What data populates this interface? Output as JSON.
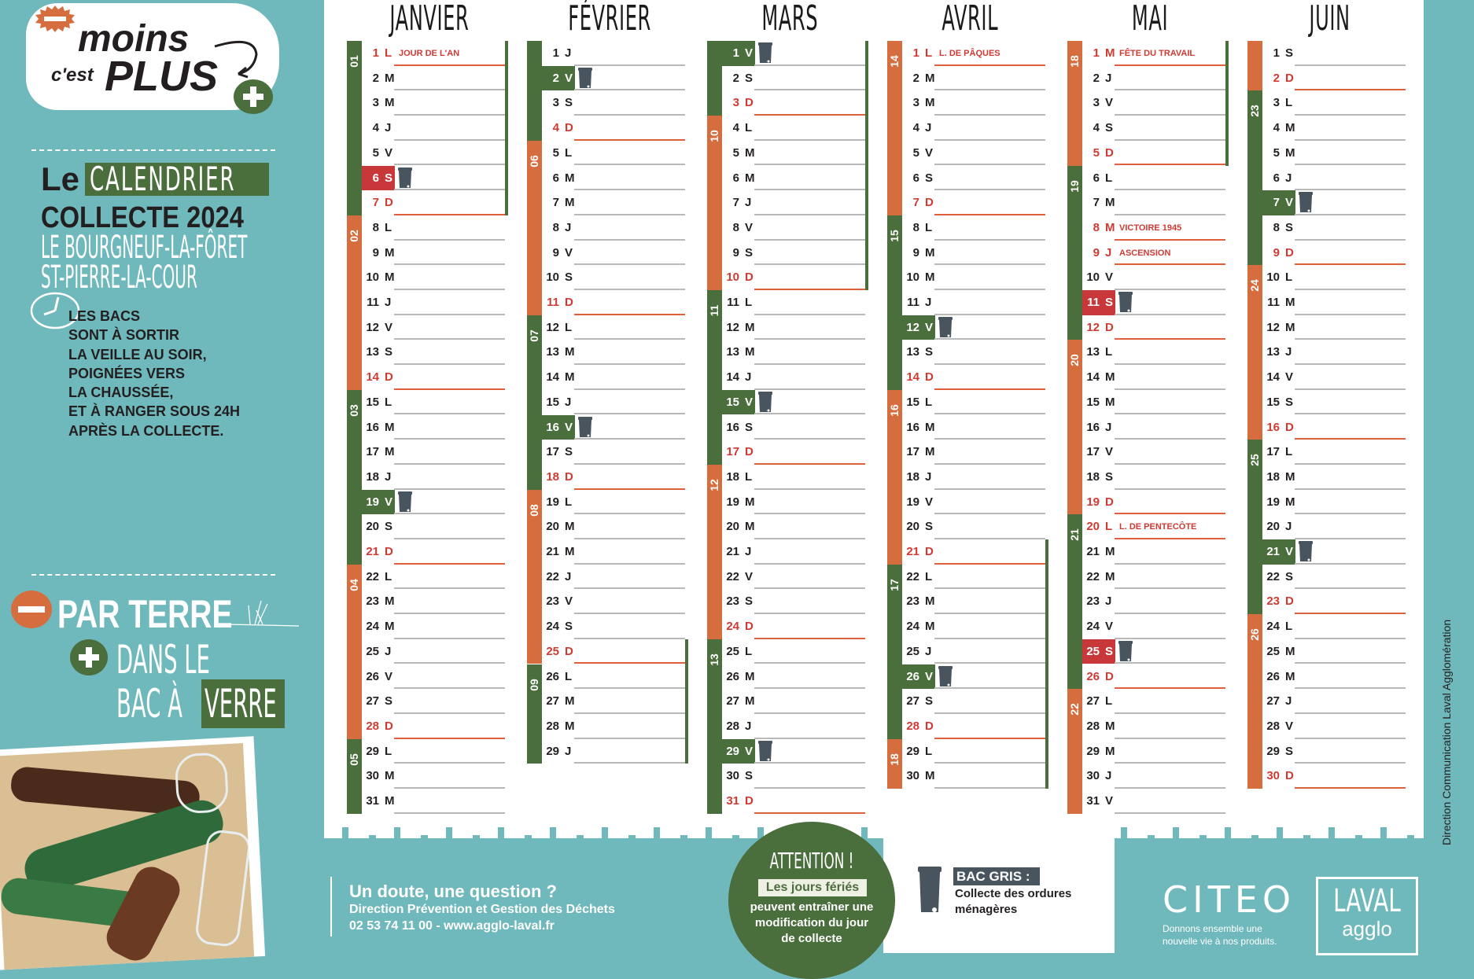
{
  "colors": {
    "teal": "#6fb8bc",
    "green": "#4a6e3c",
    "orange": "#d66d3f",
    "red": "#c8373a",
    "bin": "#48555e"
  },
  "logo": {
    "moins": "moins",
    "cest": "c'est",
    "plus": "PLUS"
  },
  "title": {
    "le": "Le",
    "calendrier": "CALENDRIER",
    "collecte": "COLLECTE 2024",
    "commune1": "LE BOURGNEUF-LA-FÔRET",
    "commune2": "ST-PIERRE-LA-COUR"
  },
  "instructions": [
    "LES BACS",
    "SONT À SORTIR",
    "LA VEILLE AU SOIR,",
    "POIGNÉES VERS",
    "LA CHAUSSÉE,",
    "ET À RANGER SOUS 24H",
    "APRÈS LA COLLECTE."
  ],
  "glass": {
    "line1": "PAR TERRE",
    "line2": "DANS LE",
    "line3a": "BAC À",
    "line3b": "VERRE"
  },
  "contact": {
    "question": "Un doute, une question ?",
    "service": "Direction Prévention et Gestion des Déchets",
    "phone_web": "02 53 74 11 00 - www.agglo-laval.fr"
  },
  "attention": {
    "title": "ATTENTION !",
    "highlight": "Les jours fériés",
    "lines": [
      "peuvent entraîner une",
      "modification du jour",
      "de collecte"
    ]
  },
  "legend": {
    "label": "BAC GRIS :",
    "desc1": "Collecte des ordures",
    "desc2": "ménagères",
    "icon": "trash-bin-icon"
  },
  "citeo": {
    "logo": "CITEO",
    "tag1": "Donnons ensemble une",
    "tag2": "nouvelle vie à nos produits."
  },
  "laval": {
    "logo1": "LAVAL",
    "logo2": "agglo"
  },
  "credit": "Direction Communication Laval Agglomération",
  "months": [
    {
      "name": "JANVIER",
      "weeks": [
        {
          "n": "01",
          "days": 7,
          "color": "green"
        },
        {
          "n": "02",
          "days": 7,
          "color": "orange"
        },
        {
          "n": "03",
          "days": 7,
          "color": "green"
        },
        {
          "n": "04",
          "days": 7,
          "color": "orange"
        },
        {
          "n": "05",
          "days": 3,
          "color": "green"
        }
      ],
      "days": [
        [
          "1",
          "L"
        ],
        [
          "2",
          "M"
        ],
        [
          "3",
          "M"
        ],
        [
          "4",
          "J"
        ],
        [
          "5",
          "V"
        ],
        [
          "6",
          "S"
        ],
        [
          "7",
          "D"
        ],
        [
          "8",
          "L"
        ],
        [
          "9",
          "M"
        ],
        [
          "10",
          "M"
        ],
        [
          "11",
          "J"
        ],
        [
          "12",
          "V"
        ],
        [
          "13",
          "S"
        ],
        [
          "14",
          "D"
        ],
        [
          "15",
          "L"
        ],
        [
          "16",
          "M"
        ],
        [
          "17",
          "M"
        ],
        [
          "18",
          "J"
        ],
        [
          "19",
          "V"
        ],
        [
          "20",
          "S"
        ],
        [
          "21",
          "D"
        ],
        [
          "22",
          "L"
        ],
        [
          "23",
          "M"
        ],
        [
          "24",
          "M"
        ],
        [
          "25",
          "J"
        ],
        [
          "26",
          "V"
        ],
        [
          "27",
          "S"
        ],
        [
          "28",
          "D"
        ],
        [
          "29",
          "L"
        ],
        [
          "30",
          "M"
        ],
        [
          "31",
          "M"
        ]
      ],
      "holidays": {
        "1": "JOUR DE L'AN"
      },
      "collection": [
        {
          "day": "6",
          "shifted": true
        },
        {
          "day": "19",
          "shifted": false
        }
      ],
      "vacation": [
        1,
        7
      ]
    },
    {
      "name": "FÉVRIER",
      "weeks": [
        {
          "n": "",
          "days": 4,
          "color": "green"
        },
        {
          "n": "06",
          "days": 7,
          "color": "orange"
        },
        {
          "n": "07",
          "days": 7,
          "color": "green"
        },
        {
          "n": "08",
          "days": 7,
          "color": "orange"
        },
        {
          "n": "09",
          "days": 4,
          "color": "green"
        }
      ],
      "days": [
        [
          "1",
          "J"
        ],
        [
          "2",
          "V"
        ],
        [
          "3",
          "S"
        ],
        [
          "4",
          "D"
        ],
        [
          "5",
          "L"
        ],
        [
          "6",
          "M"
        ],
        [
          "7",
          "M"
        ],
        [
          "8",
          "J"
        ],
        [
          "9",
          "V"
        ],
        [
          "10",
          "S"
        ],
        [
          "11",
          "D"
        ],
        [
          "12",
          "L"
        ],
        [
          "13",
          "M"
        ],
        [
          "14",
          "M"
        ],
        [
          "15",
          "J"
        ],
        [
          "16",
          "V"
        ],
        [
          "17",
          "S"
        ],
        [
          "18",
          "D"
        ],
        [
          "19",
          "L"
        ],
        [
          "20",
          "M"
        ],
        [
          "21",
          "M"
        ],
        [
          "22",
          "J"
        ],
        [
          "23",
          "V"
        ],
        [
          "24",
          "S"
        ],
        [
          "25",
          "D"
        ],
        [
          "26",
          "L"
        ],
        [
          "27",
          "M"
        ],
        [
          "28",
          "M"
        ],
        [
          "29",
          "J"
        ]
      ],
      "holidays": {},
      "collection": [
        {
          "day": "2",
          "shifted": false
        },
        {
          "day": "16",
          "shifted": false
        }
      ],
      "vacation": [
        25,
        29
      ]
    },
    {
      "name": "MARS",
      "weeks": [
        {
          "n": "",
          "days": 3,
          "color": "green"
        },
        {
          "n": "10",
          "days": 7,
          "color": "orange"
        },
        {
          "n": "11",
          "days": 7,
          "color": "green"
        },
        {
          "n": "12",
          "days": 7,
          "color": "orange"
        },
        {
          "n": "13",
          "days": 7,
          "color": "green"
        }
      ],
      "days": [
        [
          "1",
          "V"
        ],
        [
          "2",
          "S"
        ],
        [
          "3",
          "D"
        ],
        [
          "4",
          "L"
        ],
        [
          "5",
          "M"
        ],
        [
          "6",
          "M"
        ],
        [
          "7",
          "J"
        ],
        [
          "8",
          "V"
        ],
        [
          "9",
          "S"
        ],
        [
          "10",
          "D"
        ],
        [
          "11",
          "L"
        ],
        [
          "12",
          "M"
        ],
        [
          "13",
          "M"
        ],
        [
          "14",
          "J"
        ],
        [
          "15",
          "V"
        ],
        [
          "16",
          "S"
        ],
        [
          "17",
          "D"
        ],
        [
          "18",
          "L"
        ],
        [
          "19",
          "M"
        ],
        [
          "20",
          "M"
        ],
        [
          "21",
          "J"
        ],
        [
          "22",
          "V"
        ],
        [
          "23",
          "S"
        ],
        [
          "24",
          "D"
        ],
        [
          "25",
          "L"
        ],
        [
          "26",
          "M"
        ],
        [
          "27",
          "M"
        ],
        [
          "28",
          "J"
        ],
        [
          "29",
          "V"
        ],
        [
          "30",
          "S"
        ],
        [
          "31",
          "D"
        ]
      ],
      "holidays": {},
      "collection": [
        {
          "day": "1",
          "shifted": false
        },
        {
          "day": "15",
          "shifted": false
        },
        {
          "day": "29",
          "shifted": false
        }
      ],
      "vacation": [
        1,
        10
      ]
    },
    {
      "name": "AVRIL",
      "weeks": [
        {
          "n": "14",
          "days": 7,
          "color": "orange"
        },
        {
          "n": "15",
          "days": 7,
          "color": "green"
        },
        {
          "n": "16",
          "days": 7,
          "color": "orange"
        },
        {
          "n": "17",
          "days": 7,
          "color": "green"
        },
        {
          "n": "18",
          "days": 2,
          "color": "orange"
        }
      ],
      "days": [
        [
          "1",
          "L"
        ],
        [
          "2",
          "M"
        ],
        [
          "3",
          "M"
        ],
        [
          "4",
          "J"
        ],
        [
          "5",
          "V"
        ],
        [
          "6",
          "S"
        ],
        [
          "7",
          "D"
        ],
        [
          "8",
          "L"
        ],
        [
          "9",
          "M"
        ],
        [
          "10",
          "M"
        ],
        [
          "11",
          "J"
        ],
        [
          "12",
          "V"
        ],
        [
          "13",
          "S"
        ],
        [
          "14",
          "D"
        ],
        [
          "15",
          "L"
        ],
        [
          "16",
          "M"
        ],
        [
          "17",
          "M"
        ],
        [
          "18",
          "J"
        ],
        [
          "19",
          "V"
        ],
        [
          "20",
          "S"
        ],
        [
          "21",
          "D"
        ],
        [
          "22",
          "L"
        ],
        [
          "23",
          "M"
        ],
        [
          "24",
          "M"
        ],
        [
          "25",
          "J"
        ],
        [
          "26",
          "V"
        ],
        [
          "27",
          "S"
        ],
        [
          "28",
          "D"
        ],
        [
          "29",
          "L"
        ],
        [
          "30",
          "M"
        ]
      ],
      "holidays": {
        "1": "L. DE PÂQUES"
      },
      "collection": [
        {
          "day": "12",
          "shifted": false
        },
        {
          "day": "26",
          "shifted": false
        }
      ],
      "vacation": [
        21,
        30
      ]
    },
    {
      "name": "MAI",
      "weeks": [
        {
          "n": "18",
          "days": 5,
          "color": "orange"
        },
        {
          "n": "19",
          "days": 7,
          "color": "green"
        },
        {
          "n": "20",
          "days": 7,
          "color": "orange"
        },
        {
          "n": "21",
          "days": 7,
          "color": "green"
        },
        {
          "n": "22",
          "days": 5,
          "color": "orange"
        }
      ],
      "days": [
        [
          "1",
          "M"
        ],
        [
          "2",
          "J"
        ],
        [
          "3",
          "V"
        ],
        [
          "4",
          "S"
        ],
        [
          "5",
          "D"
        ],
        [
          "6",
          "L"
        ],
        [
          "7",
          "M"
        ],
        [
          "8",
          "M"
        ],
        [
          "9",
          "J"
        ],
        [
          "10",
          "V"
        ],
        [
          "11",
          "S"
        ],
        [
          "12",
          "D"
        ],
        [
          "13",
          "L"
        ],
        [
          "14",
          "M"
        ],
        [
          "15",
          "M"
        ],
        [
          "16",
          "J"
        ],
        [
          "17",
          "V"
        ],
        [
          "18",
          "S"
        ],
        [
          "19",
          "D"
        ],
        [
          "20",
          "L"
        ],
        [
          "21",
          "M"
        ],
        [
          "22",
          "M"
        ],
        [
          "23",
          "J"
        ],
        [
          "24",
          "V"
        ],
        [
          "25",
          "S"
        ],
        [
          "26",
          "D"
        ],
        [
          "27",
          "L"
        ],
        [
          "28",
          "M"
        ],
        [
          "29",
          "M"
        ],
        [
          "30",
          "J"
        ],
        [
          "31",
          "V"
        ]
      ],
      "holidays": {
        "1": "FÊTE DU TRAVAIL",
        "8": "VICTOIRE 1945",
        "9": "ASCENSION",
        "20": "L. DE PENTECÔTE"
      },
      "collection": [
        {
          "day": "11",
          "shifted": true
        },
        {
          "day": "25",
          "shifted": true
        }
      ],
      "vacation": [
        1,
        5
      ]
    },
    {
      "name": "JUIN",
      "weeks": [
        {
          "n": "",
          "days": 2,
          "color": "orange"
        },
        {
          "n": "23",
          "days": 7,
          "color": "green"
        },
        {
          "n": "24",
          "days": 7,
          "color": "orange"
        },
        {
          "n": "25",
          "days": 7,
          "color": "green"
        },
        {
          "n": "26",
          "days": 7,
          "color": "orange"
        }
      ],
      "days": [
        [
          "1",
          "S"
        ],
        [
          "2",
          "D"
        ],
        [
          "3",
          "L"
        ],
        [
          "4",
          "M"
        ],
        [
          "5",
          "M"
        ],
        [
          "6",
          "J"
        ],
        [
          "7",
          "V"
        ],
        [
          "8",
          "S"
        ],
        [
          "9",
          "D"
        ],
        [
          "10",
          "L"
        ],
        [
          "11",
          "M"
        ],
        [
          "12",
          "M"
        ],
        [
          "13",
          "J"
        ],
        [
          "14",
          "V"
        ],
        [
          "15",
          "S"
        ],
        [
          "16",
          "D"
        ],
        [
          "17",
          "L"
        ],
        [
          "18",
          "M"
        ],
        [
          "19",
          "M"
        ],
        [
          "20",
          "J"
        ],
        [
          "21",
          "V"
        ],
        [
          "22",
          "S"
        ],
        [
          "23",
          "D"
        ],
        [
          "24",
          "L"
        ],
        [
          "25",
          "M"
        ],
        [
          "26",
          "M"
        ],
        [
          "27",
          "J"
        ],
        [
          "28",
          "V"
        ],
        [
          "29",
          "S"
        ],
        [
          "30",
          "D"
        ]
      ],
      "holidays": {},
      "collection": [
        {
          "day": "7",
          "shifted": false
        },
        {
          "day": "21",
          "shifted": false
        }
      ],
      "vacation": null
    }
  ]
}
